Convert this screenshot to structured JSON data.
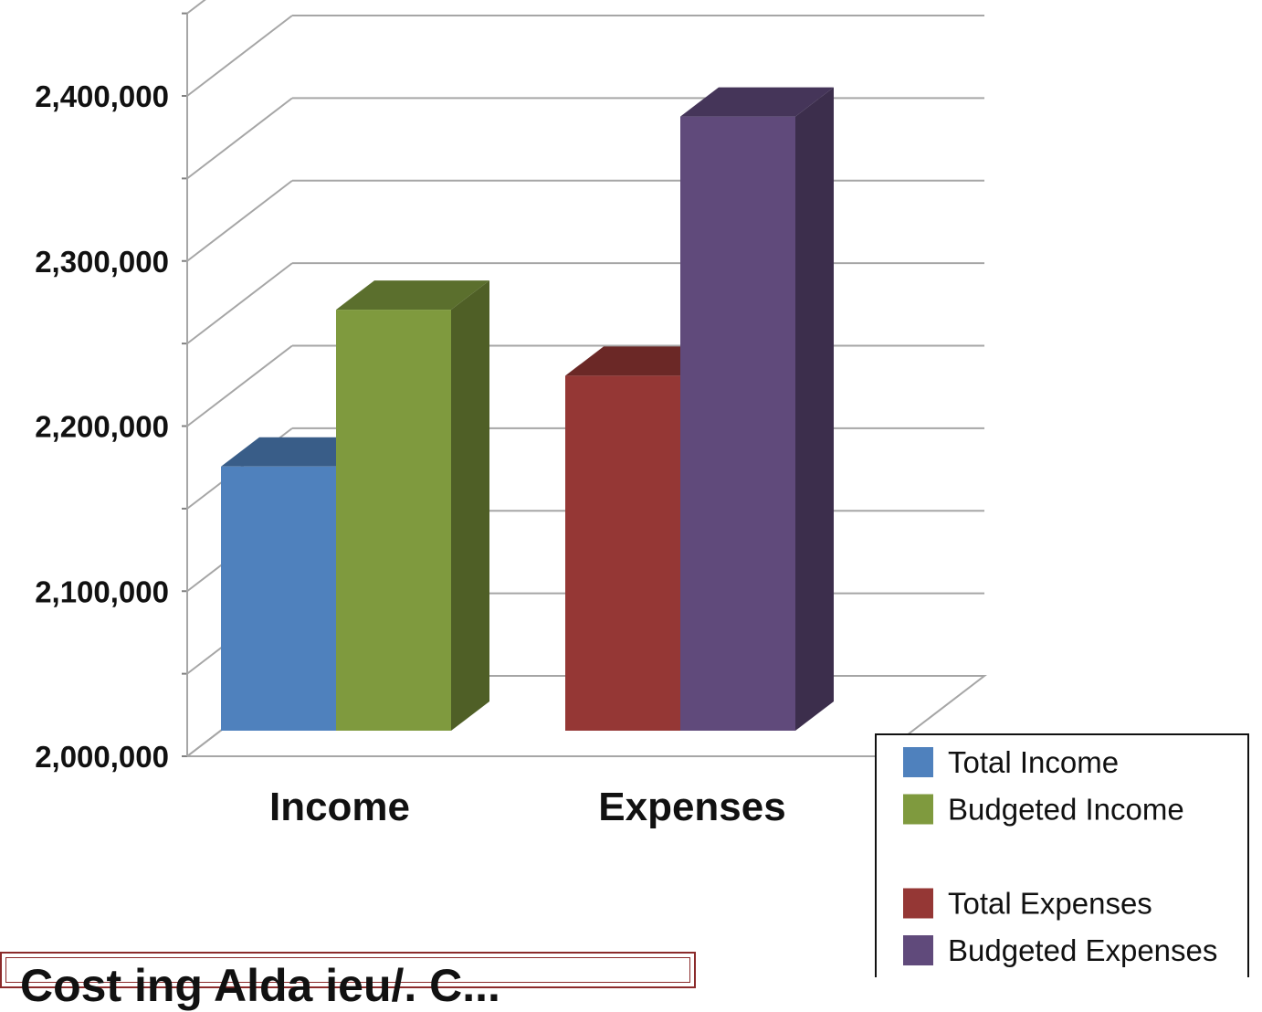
{
  "chart_data": {
    "type": "bar",
    "categories": [
      "Income",
      "Expenses"
    ],
    "series": [
      {
        "name": "Total Income",
        "category": "Income",
        "value": 2160000,
        "color": "#4f81bd"
      },
      {
        "name": "Budgeted Income",
        "category": "Income",
        "value": 2255000,
        "color": "#7f9a3e"
      },
      {
        "name": "Total Expenses",
        "category": "Expenses",
        "value": 2215000,
        "color": "#953735"
      },
      {
        "name": "Budgeted Expenses",
        "category": "Expenses",
        "value": 2372000,
        "color": "#604a7b"
      }
    ],
    "ylim": [
      2000000,
      2400000
    ],
    "y_ticks": [
      "2,000,000",
      "2,100,000",
      "2,200,000",
      "2,300,000",
      "2,400,000"
    ],
    "grid": true,
    "legend_placement": "bottom-right",
    "style": "3d-clustered-column"
  },
  "caption_partial": "Cost ing Alda ieu/. C..."
}
